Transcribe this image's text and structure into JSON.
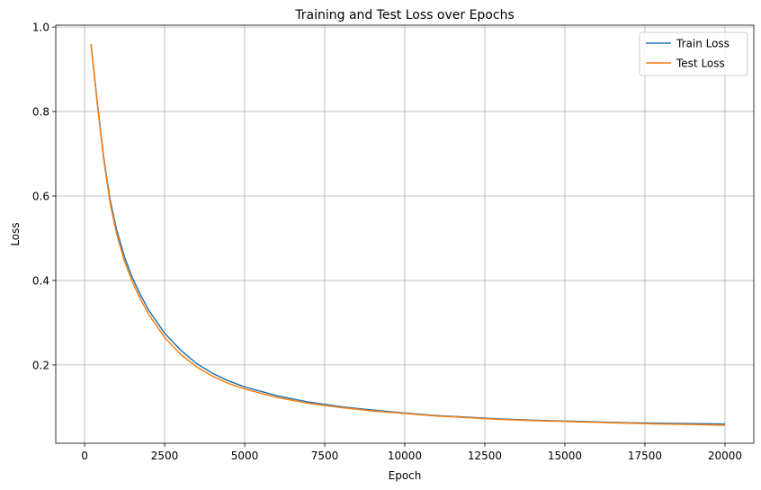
{
  "chart_data": {
    "type": "line",
    "title": "Training and Test Loss over Epochs",
    "xlabel": "Epoch",
    "ylabel": "Loss",
    "xlim": [
      -900,
      20900
    ],
    "ylim": [
      0.0145,
      1.0045
    ],
    "xticks": [
      0,
      2500,
      5000,
      7500,
      10000,
      12500,
      15000,
      17500,
      20000
    ],
    "xtick_labels": [
      "0",
      "2500",
      "5000",
      "7500",
      "10000",
      "12500",
      "15000",
      "17500",
      "20000"
    ],
    "yticks": [
      0.2,
      0.4,
      0.6,
      0.8,
      1.0
    ],
    "ytick_labels": [
      "0.2",
      "0.4",
      "0.6",
      "0.8",
      "1.0"
    ],
    "grid": true,
    "legend_position": "top-right",
    "series": [
      {
        "name": "Train Loss",
        "color": "#1f77b4",
        "x": [
          200,
          400,
          600,
          800,
          1000,
          1250,
          1500,
          1750,
          2000,
          2500,
          3000,
          3500,
          4000,
          4500,
          5000,
          6000,
          7000,
          8000,
          9000,
          10000,
          11000,
          12000,
          13000,
          14000,
          15000,
          16000,
          17000,
          18000,
          19000,
          20000
        ],
        "values": [
          0.96,
          0.82,
          0.69,
          0.59,
          0.52,
          0.455,
          0.405,
          0.365,
          0.33,
          0.275,
          0.235,
          0.203,
          0.18,
          0.162,
          0.148,
          0.127,
          0.112,
          0.101,
          0.093,
          0.086,
          0.08,
          0.076,
          0.072,
          0.069,
          0.067,
          0.065,
          0.063,
          0.062,
          0.061,
          0.06
        ]
      },
      {
        "name": "Test Loss",
        "color": "#ff7f0e",
        "x": [
          200,
          400,
          600,
          800,
          1000,
          1250,
          1500,
          1750,
          2000,
          2500,
          3000,
          3500,
          4000,
          4500,
          5000,
          6000,
          7000,
          8000,
          9000,
          10000,
          11000,
          12000,
          13000,
          14000,
          15000,
          16000,
          17000,
          18000,
          19000,
          20000
        ],
        "values": [
          0.96,
          0.815,
          0.685,
          0.582,
          0.51,
          0.445,
          0.395,
          0.355,
          0.32,
          0.265,
          0.225,
          0.195,
          0.173,
          0.156,
          0.143,
          0.123,
          0.109,
          0.099,
          0.091,
          0.085,
          0.079,
          0.075,
          0.071,
          0.068,
          0.066,
          0.064,
          0.062,
          0.06,
          0.059,
          0.057
        ]
      }
    ]
  }
}
